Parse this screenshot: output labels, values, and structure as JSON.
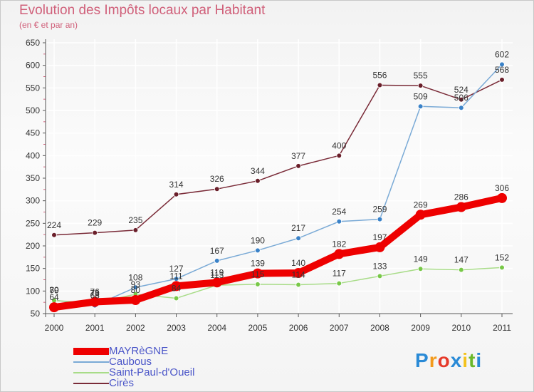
{
  "colors": {
    "title": "#d0607a",
    "grid": "#ffffff",
    "axis": "#555555",
    "minor_tick": "#d0607a"
  },
  "chart_data": {
    "type": "line",
    "title": "Evolution des Impôts locaux par Habitant",
    "subtitle": "(en € et par an)",
    "xlabel": "",
    "ylabel": "",
    "x": [
      2000,
      2001,
      2002,
      2003,
      2004,
      2005,
      2006,
      2007,
      2008,
      2009,
      2010,
      2011
    ],
    "ylim": [
      50,
      650
    ],
    "yticks": [
      50,
      100,
      150,
      200,
      250,
      300,
      350,
      400,
      450,
      500,
      550,
      600,
      650
    ],
    "series": [
      {
        "name": "Cirès",
        "color": "#7a2b38",
        "marker": "#6a1f2a",
        "weight": "thin",
        "values": [
          224,
          229,
          235,
          314,
          326,
          344,
          377,
          400,
          556,
          555,
          524,
          568
        ]
      },
      {
        "name": "Caubous",
        "color": "#7aaad6",
        "marker": "#3a82c8",
        "weight": "thin",
        "values": [
          80,
          68,
          108,
          127,
          167,
          190,
          217,
          254,
          259,
          509,
          506,
          602
        ]
      },
      {
        "name": "Saint-Paul-d'Oueil",
        "color": "#a8dc88",
        "marker": "#78c848",
        "weight": "thin",
        "values": [
          79,
          73,
          93,
          84,
          113,
          115,
          114,
          117,
          133,
          149,
          147,
          152
        ]
      },
      {
        "name": "MAYRèGNE",
        "color": "#ee0000",
        "marker": "#ee0000",
        "weight": "thick",
        "values": [
          64,
          76,
          80,
          111,
          119,
          139,
          140,
          182,
          197,
          269,
          286,
          306
        ]
      }
    ],
    "legend": [
      "MAYRèGNE",
      "Caubous",
      "Saint-Paul-d'Oueil",
      "Cirès"
    ],
    "legend_position": "bottom-left"
  },
  "logo": {
    "letters": [
      "P",
      "r",
      "o",
      "x",
      "i",
      "t",
      "i"
    ],
    "colors": [
      "#2a8ad6",
      "#f39a1c",
      "#e63a2a",
      "#2a8ad6",
      "#f3c21c",
      "#6ab82a",
      "#2a8ad6"
    ]
  }
}
